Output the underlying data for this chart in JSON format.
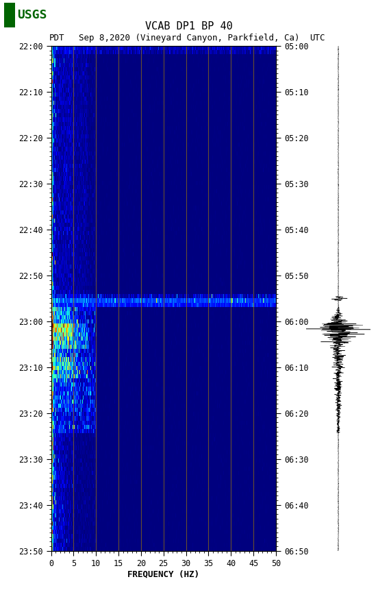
{
  "title_line1": "VCAB DP1 BP 40",
  "title_line2_left": "PDT",
  "title_line2_center": "Sep 8,2020 (Vineyard Canyon, Parkfield, Ca)",
  "title_line2_right": "UTC",
  "xlabel": "FREQUENCY (HZ)",
  "freq_min": 0,
  "freq_max": 50,
  "time_labels_left": [
    "22:00",
    "22:10",
    "22:20",
    "22:30",
    "22:40",
    "22:50",
    "23:00",
    "23:10",
    "23:20",
    "23:30",
    "23:40",
    "23:50"
  ],
  "time_labels_right": [
    "05:00",
    "05:10",
    "05:20",
    "05:30",
    "05:40",
    "05:50",
    "06:00",
    "06:10",
    "06:20",
    "06:30",
    "06:40",
    "06:50"
  ],
  "n_time_steps": 120,
  "n_freq_steps": 500,
  "background_color": "#ffffff",
  "spectrogram_bg": "#00008B",
  "vertical_line_color": "#8B6914",
  "vertical_line_positions": [
    5,
    10,
    15,
    20,
    25,
    30,
    35,
    40,
    45
  ],
  "tick_freq": [
    0,
    5,
    10,
    15,
    20,
    25,
    30,
    35,
    40,
    45,
    50
  ],
  "colormap": "jet",
  "usgs_logo_color": "#006400",
  "font_color": "#000000",
  "title_fontsize": 11,
  "tick_fontsize": 8.5,
  "label_fontsize": 9
}
